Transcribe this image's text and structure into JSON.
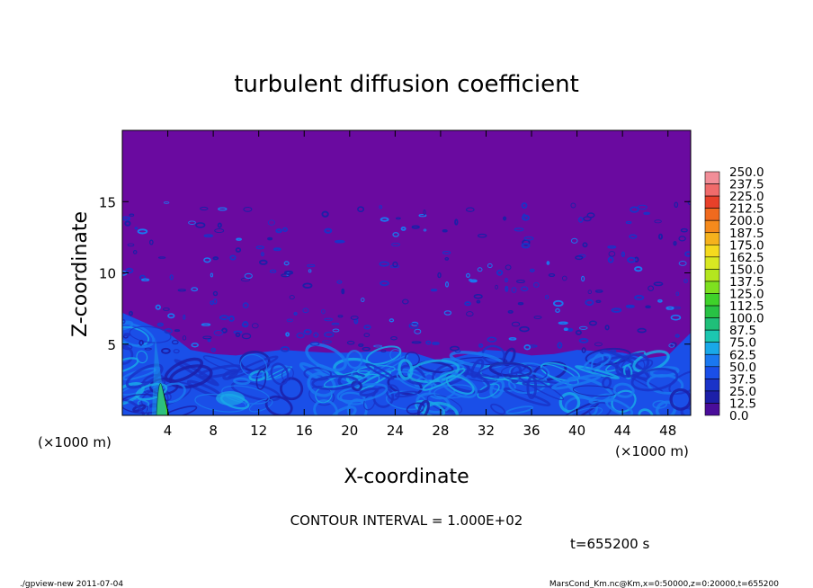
{
  "chart_data": {
    "type": "heatmap",
    "title": "turbulent diffusion coefficient",
    "xlabel": "X-coordinate",
    "ylabel": "Z-coordinate",
    "x_unit": "(×1000 m)",
    "y_unit": "(×1000 m)",
    "xlim": [
      0,
      50
    ],
    "ylim": [
      0,
      20
    ],
    "x_ticks": [
      4,
      8,
      12,
      16,
      20,
      24,
      28,
      32,
      36,
      40,
      44,
      48
    ],
    "y_ticks": [
      5,
      10,
      15
    ],
    "colorbar": {
      "levels": [
        "250.0",
        "237.5",
        "225.0",
        "212.5",
        "200.0",
        "187.5",
        "175.0",
        "162.5",
        "150.0",
        "137.5",
        "125.0",
        "112.5",
        "100.0",
        "87.5",
        "75.0",
        "62.5",
        "50.0",
        "37.5",
        "25.0",
        "12.5",
        "0.0"
      ],
      "colors": [
        "#f28e98",
        "#f06b6b",
        "#e8402a",
        "#f06a1e",
        "#f58a1c",
        "#f5b21d",
        "#f5da1e",
        "#d8e822",
        "#b4e61f",
        "#7ee01f",
        "#3fd22a",
        "#28c244",
        "#1fbf79",
        "#1cc6b0",
        "#19a8e8",
        "#1a78f0",
        "#1a4fe8",
        "#1a33c8",
        "#1c1fa8",
        "#4a0d9a"
      ],
      "background": "#6a0aa0"
    },
    "boundary_layer_top_km": [
      7.2,
      6.5,
      5.8,
      4.6,
      4.3,
      4.2,
      4.4,
      4.6,
      4.5,
      4.4,
      4.4,
      4.5,
      4.5,
      4.3,
      3.8,
      4.2,
      4.6,
      4.5,
      4.2,
      4.3,
      4.6,
      4.5,
      4.4,
      4.0,
      4.2,
      5.8
    ],
    "annotation": "CONTOUR INTERVAL = 1.000E+02",
    "contour_interval": 100,
    "time": "t=655200 s"
  },
  "footer": {
    "left": "./gpview-new   2011-07-04",
    "right": "MarsCond_Km.nc@Km,x=0:50000,z=0:20000,t=655200"
  }
}
